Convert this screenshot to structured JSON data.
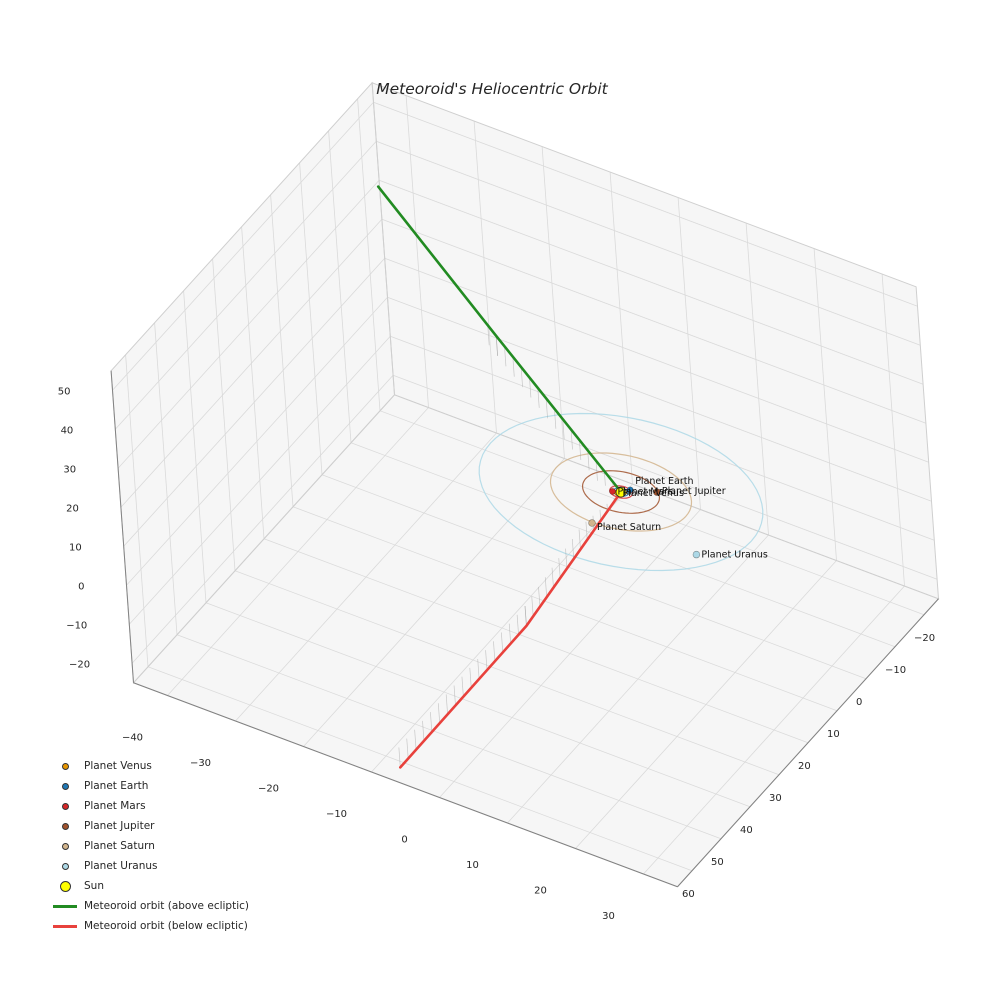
{
  "chart_data": {
    "type": "line",
    "projection": "3d",
    "title": "Meteoroid's Heliocentric Orbit",
    "grid": true,
    "axes": {
      "x": {
        "range": [
          -45,
          35
        ],
        "ticks": [
          -40,
          -30,
          -20,
          -10,
          0,
          10,
          20,
          30
        ]
      },
      "y": {
        "range": [
          -25,
          65
        ],
        "ticks": [
          -20,
          -10,
          0,
          10,
          20,
          30,
          40,
          50,
          60
        ]
      },
      "z": {
        "range": [
          -25,
          55
        ],
        "ticks": [
          -20,
          -10,
          0,
          10,
          20,
          30,
          40,
          50
        ]
      }
    },
    "sun": {
      "label": "Sun",
      "color": "#ffff00",
      "edge_color": "#2b2b2b",
      "position": [
        0,
        0,
        0
      ]
    },
    "planets": [
      {
        "label": "Planet Venus",
        "color": "#e69500",
        "orbit_radius": 0.72,
        "position": [
          -0.3,
          0.5,
          0
        ]
      },
      {
        "label": "Planet Earth",
        "color": "#1f77b4",
        "orbit_radius": 1.0,
        "position": [
          0.8,
          -1.3,
          0
        ]
      },
      {
        "label": "Planet Mars",
        "color": "#d62728",
        "orbit_radius": 1.52,
        "position": [
          -1.0,
          0.6,
          0
        ]
      },
      {
        "label": "Planet Jupiter",
        "color": "#a0522d",
        "orbit_radius": 5.2,
        "position": [
          3.95,
          -3.1,
          0
        ]
      },
      {
        "label": "Planet Saturn",
        "color": "#d2b48c",
        "orbit_radius": 9.54,
        "position": [
          -0.1,
          9.77,
          0
        ]
      },
      {
        "label": "Planet Uranus",
        "color": "#add8e6",
        "orbit_radius": 19.19,
        "position": [
          14.5,
          8.0,
          0
        ]
      }
    ],
    "meteoroid": {
      "above_ecliptic": {
        "label": "Meteoroid orbit (above ecliptic)",
        "color": "#228b22",
        "points": [
          [
            -34,
            -1.3,
            55
          ],
          [
            -17.5,
            -0.7,
            28
          ],
          [
            0,
            0,
            0
          ]
        ]
      },
      "below_ecliptic": {
        "label": "Meteoroid orbit (below ecliptic)",
        "color": "#e8413c",
        "points": [
          [
            0,
            0,
            0
          ],
          [
            -2.5,
            28,
            -13
          ],
          [
            -7.3,
            61.4,
            -25
          ]
        ]
      }
    },
    "drop_lines_to_ecliptic": true
  }
}
